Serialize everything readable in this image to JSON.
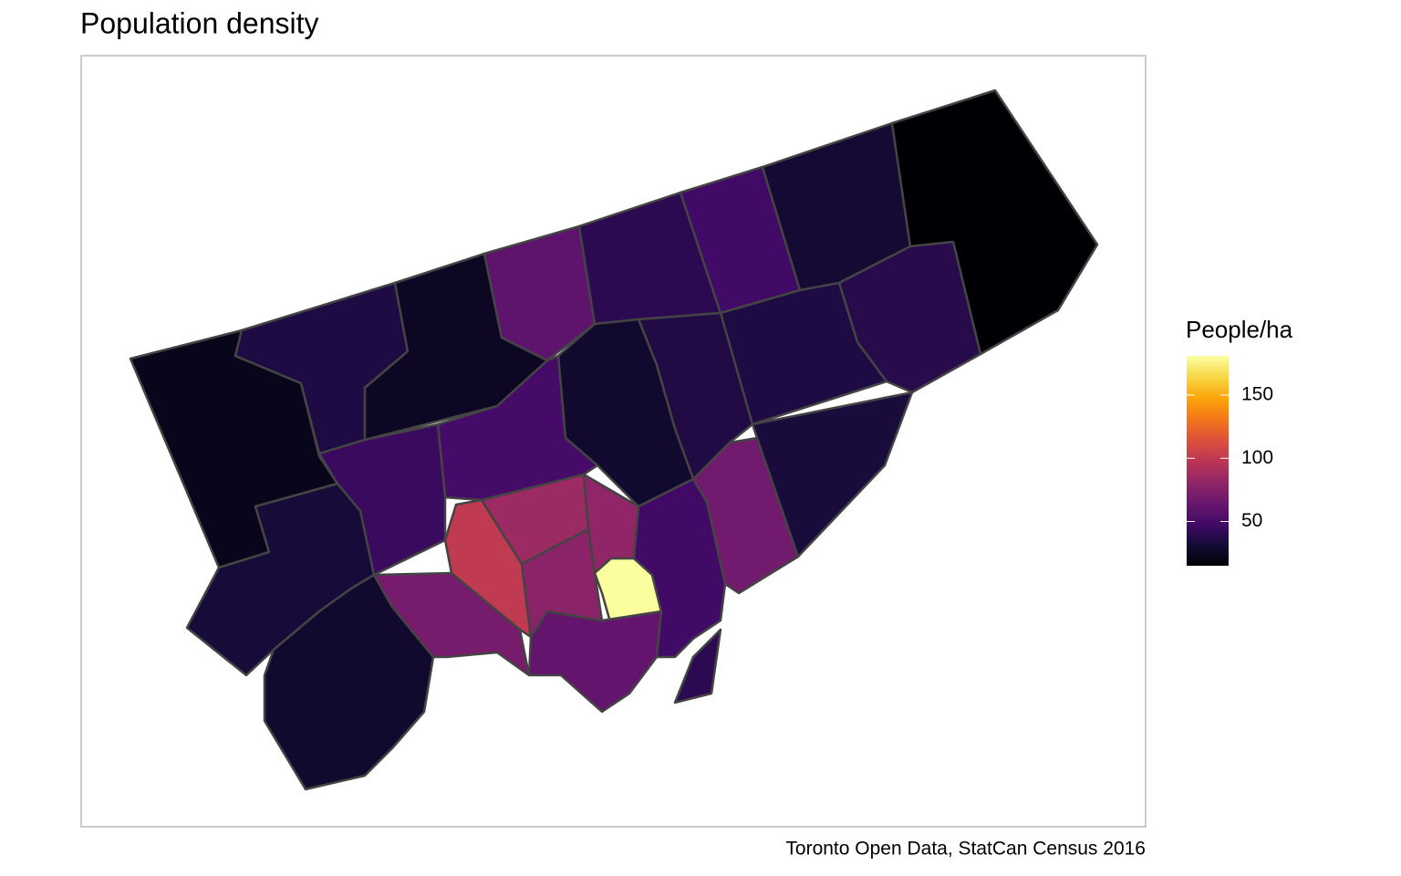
{
  "chart_data": {
    "type": "choropleth",
    "title": "Population density",
    "caption": "Toronto Open Data, StatCan Census 2016",
    "legend_title": "People/ha",
    "values": [
      22,
      35,
      25,
      60,
      40,
      48,
      30,
      15,
      38,
      35,
      36,
      28,
      50,
      45,
      32,
      28,
      70,
      100,
      85,
      80,
      78,
      180,
      62,
      48,
      68,
      33,
      40
    ],
    "zlim": [
      15,
      181
    ],
    "zticks": [
      50,
      100,
      150
    ],
    "colorscale": [
      "#000004",
      "#160b39",
      "#420a68",
      "#6a176e",
      "#932667",
      "#bc3754",
      "#dd513a",
      "#f37819",
      "#fca50a",
      "#f6d746",
      "#fcffa4"
    ],
    "border_color": "#444444"
  }
}
